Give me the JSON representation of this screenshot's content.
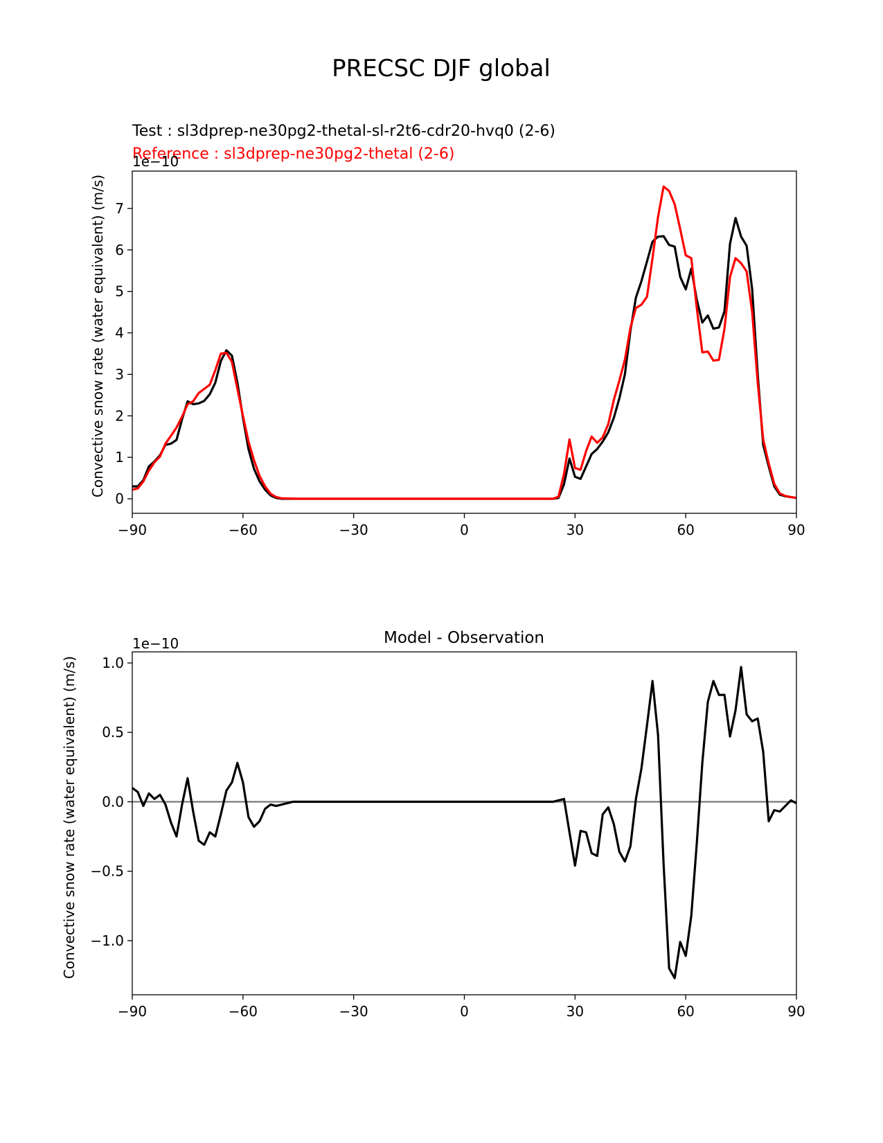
{
  "figure": {
    "title": "PRECSC DJF global"
  },
  "chart_data": [
    {
      "type": "line",
      "test_label": "Test : sl3dprep-ne30pg2-thetal-sl-r2t6-cdr20-hvq0 (2-6)",
      "reference_label": "Reference : sl3dprep-ne30pg2-thetal (2-6)",
      "ylabel": "Convective snow rate (water equivalent) (m/s)",
      "offset_text": "1e−10",
      "xlim": [
        -90,
        90
      ],
      "ylim": [
        -0.35,
        7.9
      ],
      "xticks": [
        -90,
        -60,
        -30,
        0,
        30,
        60,
        90
      ],
      "xtick_labels": [
        "−90",
        "−60",
        "−30",
        "0",
        "30",
        "60",
        "90"
      ],
      "yticks": [
        0,
        1,
        2,
        3,
        4,
        5,
        6,
        7
      ],
      "ytick_labels": [
        "0",
        "1",
        "2",
        "3",
        "4",
        "5",
        "6",
        "7"
      ],
      "series": [
        {
          "name": "Test",
          "color": "#000000",
          "points": [
            [
              -90,
              0.3
            ],
            [
              -88.5,
              0.3
            ],
            [
              -87,
              0.45
            ],
            [
              -85.5,
              0.78
            ],
            [
              -84,
              0.9
            ],
            [
              -82.5,
              1.05
            ],
            [
              -81,
              1.3
            ],
            [
              -79.5,
              1.33
            ],
            [
              -78,
              1.42
            ],
            [
              -76.5,
              1.92
            ],
            [
              -75,
              2.35
            ],
            [
              -73.5,
              2.28
            ],
            [
              -72,
              2.3
            ],
            [
              -70.5,
              2.36
            ],
            [
              -69,
              2.52
            ],
            [
              -67.5,
              2.8
            ],
            [
              -66,
              3.32
            ],
            [
              -64.5,
              3.58
            ],
            [
              -63,
              3.45
            ],
            [
              -61.5,
              2.8
            ],
            [
              -60,
              1.95
            ],
            [
              -58.5,
              1.2
            ],
            [
              -57,
              0.72
            ],
            [
              -55.5,
              0.42
            ],
            [
              -54,
              0.22
            ],
            [
              -52.5,
              0.08
            ],
            [
              -51,
              0.02
            ],
            [
              -49.5,
              0.0
            ],
            [
              -45,
              0.0
            ],
            [
              0,
              0.0
            ],
            [
              24,
              0.0
            ],
            [
              25.5,
              0.02
            ],
            [
              27,
              0.35
            ],
            [
              28.5,
              0.97
            ],
            [
              30,
              0.53
            ],
            [
              31.5,
              0.48
            ],
            [
              33,
              0.78
            ],
            [
              34.5,
              1.08
            ],
            [
              36,
              1.2
            ],
            [
              37.5,
              1.38
            ],
            [
              39,
              1.6
            ],
            [
              40.5,
              1.95
            ],
            [
              42,
              2.42
            ],
            [
              43.5,
              3.0
            ],
            [
              45,
              4.05
            ],
            [
              46.5,
              4.85
            ],
            [
              48,
              5.25
            ],
            [
              49.5,
              5.72
            ],
            [
              51,
              6.2
            ],
            [
              52.5,
              6.32
            ],
            [
              54,
              6.33
            ],
            [
              55.5,
              6.12
            ],
            [
              57,
              6.08
            ],
            [
              58.5,
              5.35
            ],
            [
              60,
              5.05
            ],
            [
              61.5,
              5.55
            ],
            [
              63,
              4.8
            ],
            [
              64.5,
              4.25
            ],
            [
              66,
              4.42
            ],
            [
              67.5,
              4.1
            ],
            [
              69,
              4.13
            ],
            [
              70.5,
              4.52
            ],
            [
              72,
              6.15
            ],
            [
              73.5,
              6.77
            ],
            [
              75,
              6.32
            ],
            [
              76.5,
              6.1
            ],
            [
              78,
              5.05
            ],
            [
              79.5,
              3.0
            ],
            [
              81,
              1.3
            ],
            [
              82.5,
              0.78
            ],
            [
              84,
              0.3
            ],
            [
              85.5,
              0.1
            ],
            [
              87,
              0.06
            ],
            [
              88.5,
              0.04
            ],
            [
              90,
              0.02
            ]
          ]
        },
        {
          "name": "Reference",
          "color": "#ff0000",
          "points": [
            [
              -90,
              0.22
            ],
            [
              -88.5,
              0.25
            ],
            [
              -87,
              0.42
            ],
            [
              -85.5,
              0.68
            ],
            [
              -84,
              0.88
            ],
            [
              -82.5,
              1.02
            ],
            [
              -81,
              1.33
            ],
            [
              -79.5,
              1.52
            ],
            [
              -78,
              1.72
            ],
            [
              -76.5,
              1.98
            ],
            [
              -75,
              2.28
            ],
            [
              -73.5,
              2.35
            ],
            [
              -72,
              2.55
            ],
            [
              -70.5,
              2.65
            ],
            [
              -69,
              2.75
            ],
            [
              -67.5,
              3.1
            ],
            [
              -66,
              3.5
            ],
            [
              -64.5,
              3.52
            ],
            [
              -63,
              3.3
            ],
            [
              -61.5,
              2.65
            ],
            [
              -60,
              2.0
            ],
            [
              -58.5,
              1.38
            ],
            [
              -57,
              0.93
            ],
            [
              -55.5,
              0.55
            ],
            [
              -54,
              0.3
            ],
            [
              -52.5,
              0.12
            ],
            [
              -51,
              0.04
            ],
            [
              -49.5,
              0.01
            ],
            [
              -45,
              0.0
            ],
            [
              0,
              0.0
            ],
            [
              24,
              0.0
            ],
            [
              25.5,
              0.05
            ],
            [
              27,
              0.6
            ],
            [
              28.5,
              1.43
            ],
            [
              30,
              0.74
            ],
            [
              31.5,
              0.7
            ],
            [
              33,
              1.15
            ],
            [
              34.5,
              1.5
            ],
            [
              36,
              1.35
            ],
            [
              37.5,
              1.48
            ],
            [
              39,
              1.8
            ],
            [
              40.5,
              2.38
            ],
            [
              42,
              2.85
            ],
            [
              43.5,
              3.35
            ],
            [
              45,
              4.12
            ],
            [
              46.5,
              4.6
            ],
            [
              48,
              4.68
            ],
            [
              49.5,
              4.87
            ],
            [
              51,
              5.8
            ],
            [
              52.5,
              6.8
            ],
            [
              54,
              7.53
            ],
            [
              55.5,
              7.42
            ],
            [
              57,
              7.1
            ],
            [
              58.5,
              6.5
            ],
            [
              60,
              5.87
            ],
            [
              61.5,
              5.8
            ],
            [
              63,
              4.6
            ],
            [
              64.5,
              3.53
            ],
            [
              66,
              3.55
            ],
            [
              67.5,
              3.33
            ],
            [
              69,
              3.35
            ],
            [
              70.5,
              4.1
            ],
            [
              72,
              5.35
            ],
            [
              73.5,
              5.8
            ],
            [
              75,
              5.68
            ],
            [
              76.5,
              5.48
            ],
            [
              78,
              4.5
            ],
            [
              79.5,
              2.8
            ],
            [
              81,
              1.43
            ],
            [
              82.5,
              0.85
            ],
            [
              84,
              0.36
            ],
            [
              85.5,
              0.13
            ],
            [
              87,
              0.07
            ],
            [
              88.5,
              0.04
            ],
            [
              90,
              0.02
            ]
          ]
        }
      ]
    },
    {
      "type": "line",
      "title": "Model - Observation",
      "ylabel": "Convective snow rate (water equivalent) (m/s)",
      "offset_text": "1e−10",
      "xlim": [
        -90,
        90
      ],
      "ylim": [
        -1.39,
        1.08
      ],
      "xticks": [
        -90,
        -60,
        -30,
        0,
        30,
        60,
        90
      ],
      "xtick_labels": [
        "−90",
        "−60",
        "−30",
        "0",
        "30",
        "60",
        "90"
      ],
      "yticks": [
        -1.0,
        -0.5,
        0.0,
        0.5,
        1.0
      ],
      "ytick_labels": [
        "−1.0",
        "−0.5",
        "0.0",
        "0.5",
        "1.0"
      ],
      "zero_line_color": "#808080",
      "series": [
        {
          "name": "",
          "color": "#000000",
          "points": [
            [
              -90,
              0.1
            ],
            [
              -88.5,
              0.07
            ],
            [
              -87,
              -0.03
            ],
            [
              -85.5,
              0.06
            ],
            [
              -84,
              0.02
            ],
            [
              -82.5,
              0.05
            ],
            [
              -81,
              -0.02
            ],
            [
              -79.5,
              -0.15
            ],
            [
              -78,
              -0.25
            ],
            [
              -76.5,
              -0.02
            ],
            [
              -75,
              0.17
            ],
            [
              -73.5,
              -0.07
            ],
            [
              -72,
              -0.28
            ],
            [
              -70.5,
              -0.31
            ],
            [
              -69,
              -0.22
            ],
            [
              -67.5,
              -0.25
            ],
            [
              -66,
              -0.09
            ],
            [
              -64.5,
              0.08
            ],
            [
              -63,
              0.14
            ],
            [
              -61.5,
              0.28
            ],
            [
              -60,
              0.14
            ],
            [
              -58.5,
              -0.11
            ],
            [
              -57,
              -0.18
            ],
            [
              -55.5,
              -0.14
            ],
            [
              -54,
              -0.05
            ],
            [
              -52.5,
              -0.02
            ],
            [
              -51,
              -0.03
            ],
            [
              -49.5,
              -0.02
            ],
            [
              -48,
              -0.01
            ],
            [
              -46.5,
              0.0
            ],
            [
              -45,
              0.0
            ],
            [
              0,
              0.0
            ],
            [
              24,
              0.0
            ],
            [
              25.5,
              0.01
            ],
            [
              27,
              0.02
            ],
            [
              28.5,
              -0.22
            ],
            [
              30,
              -0.46
            ],
            [
              31.5,
              -0.21
            ],
            [
              33,
              -0.22
            ],
            [
              34.5,
              -0.37
            ],
            [
              36,
              -0.39
            ],
            [
              37.5,
              -0.09
            ],
            [
              39,
              -0.04
            ],
            [
              40.5,
              -0.16
            ],
            [
              42,
              -0.36
            ],
            [
              43.5,
              -0.43
            ],
            [
              45,
              -0.32
            ],
            [
              46.5,
              0.02
            ],
            [
              48,
              0.24
            ],
            [
              49.5,
              0.55
            ],
            [
              51,
              0.87
            ],
            [
              52.5,
              0.48
            ],
            [
              54,
              -0.45
            ],
            [
              55.5,
              -1.2
            ],
            [
              57,
              -1.27
            ],
            [
              58.5,
              -1.01
            ],
            [
              60,
              -1.11
            ],
            [
              61.5,
              -0.82
            ],
            [
              63,
              -0.3
            ],
            [
              64.5,
              0.28
            ],
            [
              66,
              0.72
            ],
            [
              67.5,
              0.87
            ],
            [
              69,
              0.77
            ],
            [
              70.5,
              0.77
            ],
            [
              72,
              0.47
            ],
            [
              73.5,
              0.66
            ],
            [
              75,
              0.97
            ],
            [
              76.5,
              0.63
            ],
            [
              78,
              0.58
            ],
            [
              79.5,
              0.6
            ],
            [
              81,
              0.36
            ],
            [
              82.5,
              -0.14
            ],
            [
              84,
              -0.06
            ],
            [
              85.5,
              -0.07
            ],
            [
              87,
              -0.03
            ],
            [
              88.5,
              0.01
            ],
            [
              90,
              -0.01
            ]
          ]
        }
      ]
    }
  ]
}
